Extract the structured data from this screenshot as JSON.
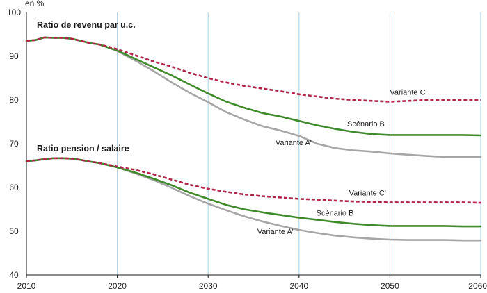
{
  "chart_data": {
    "type": "line",
    "unit_label": "en %",
    "x_ticks": [
      2010,
      2020,
      2030,
      2040,
      2050,
      2060
    ],
    "y_ticks": [
      40,
      50,
      60,
      70,
      80,
      90,
      100
    ],
    "xlim": [
      2010,
      2060
    ],
    "ylim": [
      40,
      100
    ],
    "grid": "vertical",
    "colors": {
      "scenario_b": "#3f8a2a",
      "variante_a": "#a6a6a6",
      "variante_c": "#b0264a",
      "grid": "#a9cfe8",
      "axis": "#1a1a1a"
    },
    "panels": [
      {
        "title": "Ratio de revenu par u.c.",
        "series": [
          {
            "key": "variante_c",
            "name": "Variante C'",
            "style": "dashed",
            "x": [
              2010,
              2011,
              2012,
              2013,
              2014,
              2015,
              2016,
              2017,
              2018,
              2019,
              2020,
              2022,
              2024,
              2026,
              2028,
              2030,
              2032,
              2034,
              2036,
              2038,
              2040,
              2042,
              2044,
              2046,
              2048,
              2050,
              2052,
              2054,
              2056,
              2058,
              2060
            ],
            "y": [
              93.5,
              93.7,
              94.3,
              94.2,
              94.2,
              94.0,
              93.5,
              93.0,
              92.7,
              92.2,
              91.6,
              90.2,
              88.8,
              87.6,
              86.2,
              85.0,
              84.0,
              83.2,
              82.6,
              82.0,
              81.3,
              80.8,
              80.3,
              80.0,
              79.8,
              79.6,
              79.8,
              80.0,
              80.0,
              80.0,
              80.0
            ]
          },
          {
            "key": "scenario_b",
            "name": "Scénario B",
            "style": "solid",
            "x": [
              2010,
              2011,
              2012,
              2013,
              2014,
              2015,
              2016,
              2017,
              2018,
              2019,
              2020,
              2022,
              2024,
              2026,
              2028,
              2030,
              2032,
              2034,
              2036,
              2038,
              2040,
              2042,
              2044,
              2046,
              2048,
              2050,
              2052,
              2054,
              2056,
              2058,
              2060
            ],
            "y": [
              93.5,
              93.7,
              94.3,
              94.2,
              94.2,
              94.0,
              93.5,
              93.0,
              92.7,
              92.0,
              91.3,
              89.4,
              87.5,
              85.6,
              83.5,
              81.5,
              79.6,
              78.2,
              77.0,
              76.2,
              75.2,
              74.2,
              73.4,
              72.7,
              72.2,
              72.0,
              72.0,
              72.0,
              72.0,
              72.0,
              71.9
            ]
          },
          {
            "key": "variante_a",
            "name": "Variante A'",
            "style": "solid",
            "x": [
              2010,
              2011,
              2012,
              2013,
              2014,
              2015,
              2016,
              2017,
              2018,
              2019,
              2020,
              2022,
              2024,
              2026,
              2028,
              2030,
              2032,
              2034,
              2036,
              2038,
              2040,
              2042,
              2044,
              2046,
              2048,
              2050,
              2052,
              2054,
              2056,
              2058,
              2060
            ],
            "y": [
              93.5,
              93.7,
              94.3,
              94.2,
              94.2,
              94.0,
              93.5,
              93.0,
              92.7,
              92.0,
              91.2,
              89.0,
              86.6,
              84.0,
              81.6,
              79.5,
              77.2,
              75.5,
              74.0,
              73.0,
              71.8,
              70.0,
              69.0,
              68.5,
              68.2,
              67.8,
              67.5,
              67.2,
              67.0,
              67.0,
              67.0
            ]
          }
        ]
      },
      {
        "title": "Ratio pension / salaire",
        "series": [
          {
            "key": "variante_c",
            "name": "Variante C'",
            "style": "dashed",
            "x": [
              2010,
              2011,
              2012,
              2013,
              2014,
              2015,
              2016,
              2017,
              2018,
              2019,
              2020,
              2022,
              2024,
              2026,
              2028,
              2030,
              2032,
              2034,
              2036,
              2038,
              2040,
              2042,
              2044,
              2046,
              2048,
              2050,
              2052,
              2054,
              2056,
              2058,
              2060
            ],
            "y": [
              66.0,
              66.2,
              66.5,
              66.7,
              66.7,
              66.6,
              66.3,
              65.9,
              65.6,
              65.2,
              64.8,
              64.0,
              63.0,
              61.8,
              60.6,
              59.7,
              59.0,
              58.4,
              58.0,
              57.7,
              57.4,
              57.2,
              57.0,
              56.8,
              56.7,
              56.6,
              56.6,
              56.6,
              56.6,
              56.6,
              56.5
            ]
          },
          {
            "key": "scenario_b",
            "name": "Scénario B",
            "style": "solid",
            "x": [
              2010,
              2011,
              2012,
              2013,
              2014,
              2015,
              2016,
              2017,
              2018,
              2019,
              2020,
              2022,
              2024,
              2026,
              2028,
              2030,
              2032,
              2034,
              2036,
              2038,
              2040,
              2042,
              2044,
              2046,
              2048,
              2050,
              2052,
              2054,
              2056,
              2058,
              2060
            ],
            "y": [
              66.0,
              66.2,
              66.5,
              66.7,
              66.7,
              66.6,
              66.3,
              65.9,
              65.6,
              65.1,
              64.6,
              63.4,
              62.0,
              60.5,
              58.8,
              57.4,
              56.0,
              55.0,
              54.3,
              53.7,
              53.1,
              52.6,
              52.1,
              51.7,
              51.4,
              51.2,
              51.2,
              51.2,
              51.2,
              51.1,
              51.1
            ]
          },
          {
            "key": "variante_a",
            "name": "Variante A'",
            "style": "solid",
            "x": [
              2010,
              2011,
              2012,
              2013,
              2014,
              2015,
              2016,
              2017,
              2018,
              2019,
              2020,
              2022,
              2024,
              2026,
              2028,
              2030,
              2032,
              2034,
              2036,
              2038,
              2040,
              2042,
              2044,
              2046,
              2048,
              2050,
              2052,
              2054,
              2056,
              2058,
              2060
            ],
            "y": [
              66.0,
              66.2,
              66.5,
              66.7,
              66.7,
              66.6,
              66.3,
              65.9,
              65.6,
              65.1,
              64.6,
              63.2,
              61.7,
              59.9,
              58.0,
              56.3,
              54.8,
              53.4,
              52.2,
              51.2,
              50.3,
              49.6,
              49.0,
              48.6,
              48.3,
              48.1,
              48.0,
              48.0,
              48.0,
              47.9,
              47.9
            ]
          }
        ]
      }
    ],
    "annotations": [
      {
        "text": "Variante C'",
        "x": 2050,
        "y": 81.2,
        "series": "variante_c"
      },
      {
        "text": "Scénario B",
        "x": 2045.3,
        "y": 74.0,
        "series": "scenario_b"
      },
      {
        "text": "Variante A'",
        "x": 2037.4,
        "y": 69.7,
        "series": "variante_a"
      },
      {
        "text": "Variante C'",
        "x": 2045.5,
        "y": 58.2,
        "series": "variante_c"
      },
      {
        "text": "Scénario B",
        "x": 2041.9,
        "y": 53.6,
        "series": "scenario_b"
      },
      {
        "text": "Variante A'",
        "x": 2035.4,
        "y": 49.4,
        "series": "variante_a"
      }
    ]
  }
}
